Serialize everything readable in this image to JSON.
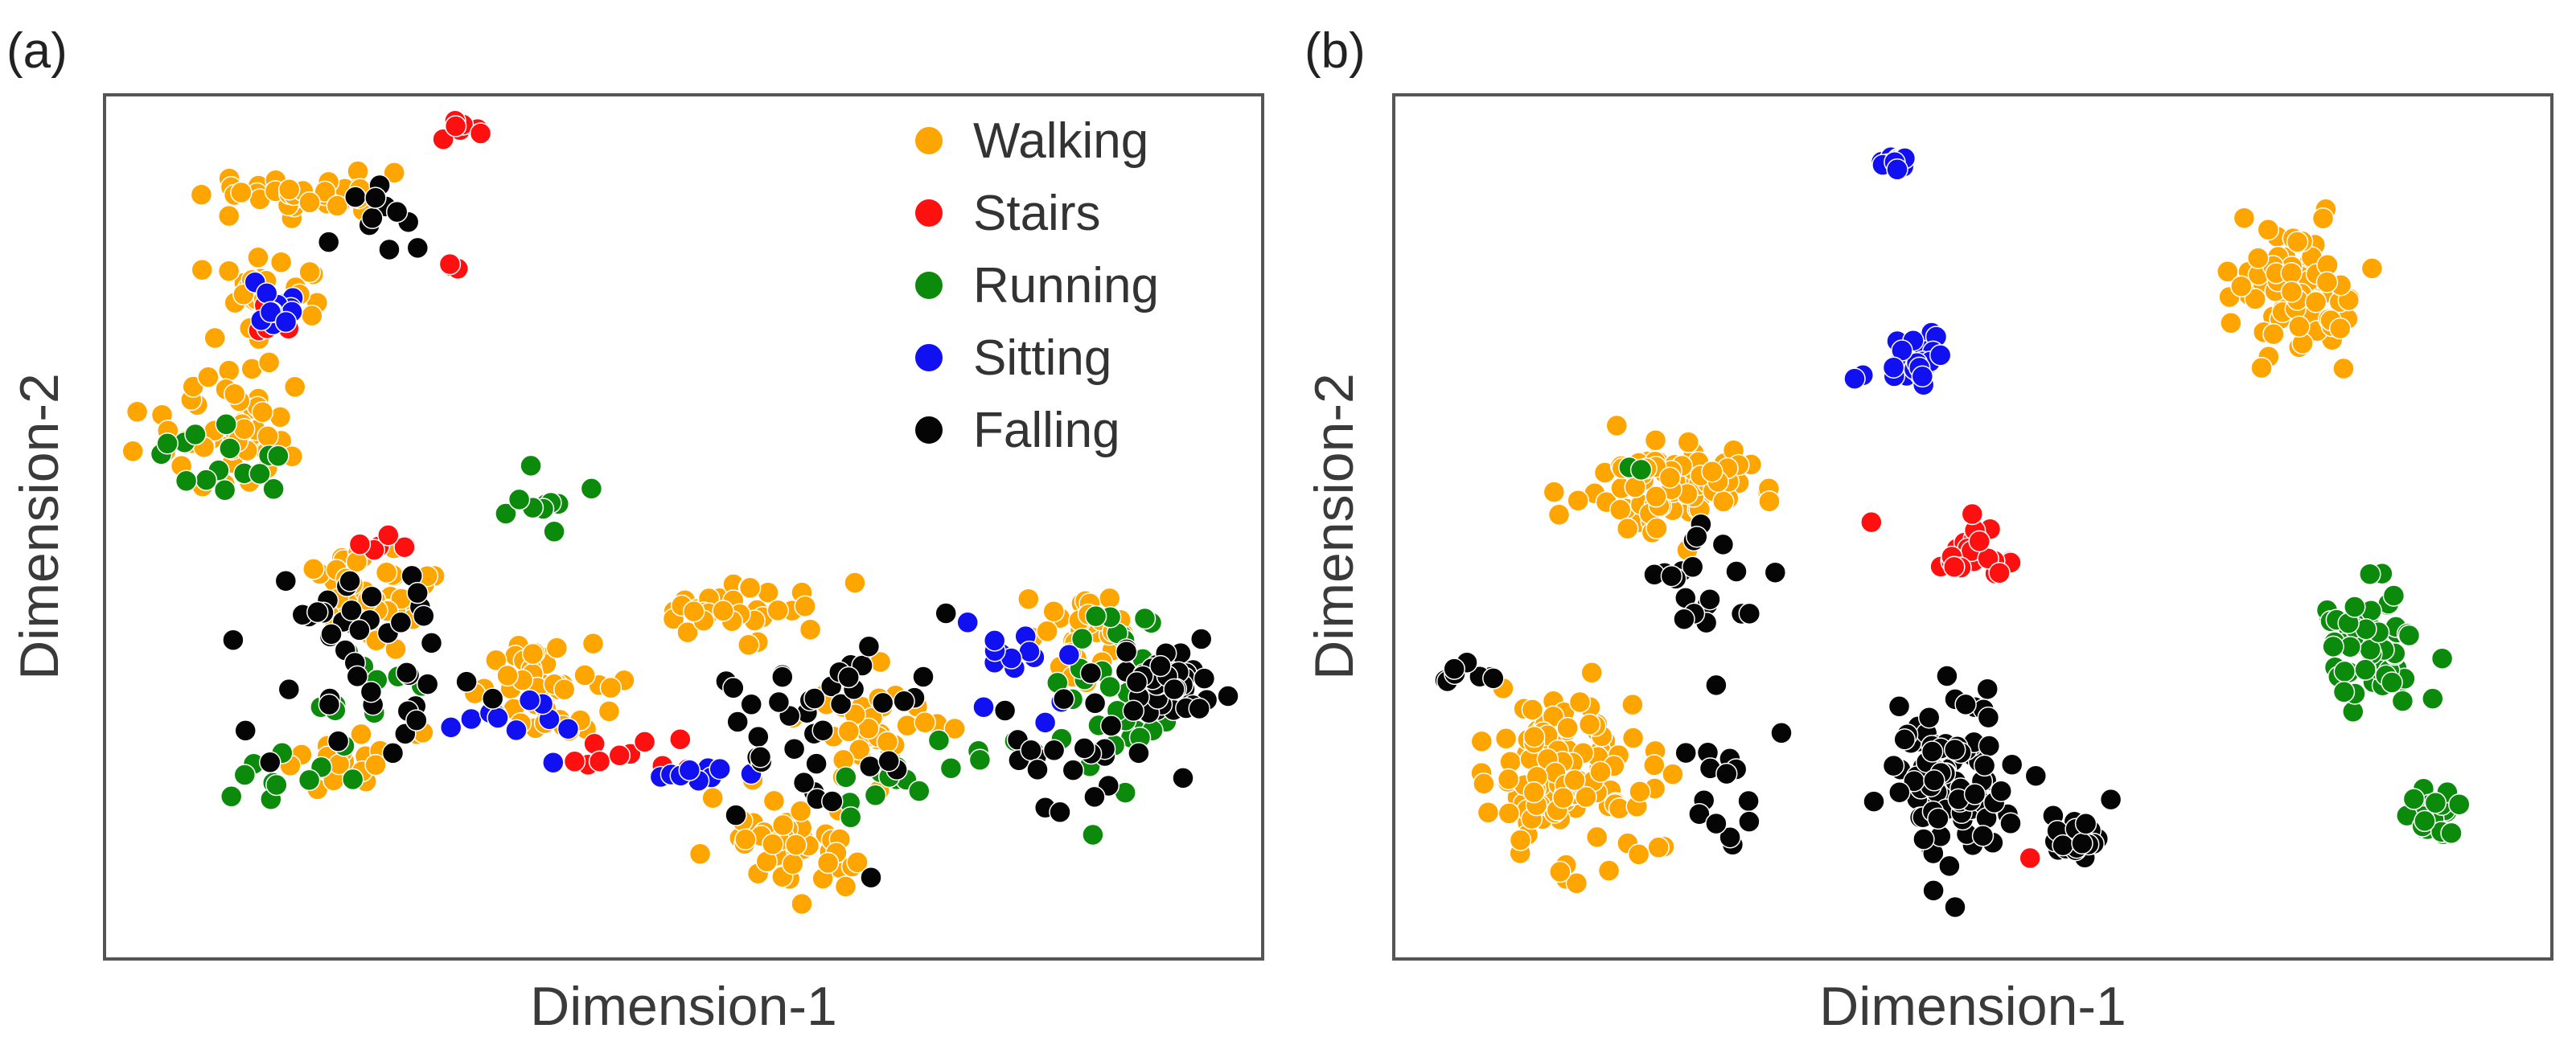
{
  "chart_data": [
    {
      "type": "scatter",
      "panel_label": "(a)",
      "xlabel": "Dimension-1",
      "ylabel": "Dimension-2",
      "xlim": [
        0,
        100
      ],
      "ylim": [
        0,
        100
      ],
      "grid": false,
      "legend": {
        "placement": "top-right",
        "entries": [
          "Walking",
          "Stairs",
          "Running",
          "Sitting",
          "Falling"
        ]
      },
      "series": [
        {
          "name": "Walking",
          "color": "#FFA500",
          "clusters": [
            {
              "cx": 18,
              "cy": 90,
              "rx": 7,
              "ry": 2.5,
              "n": 40
            },
            {
              "cx": 13,
              "cy": 78,
              "rx": 4,
              "ry": 4,
              "n": 28
            },
            {
              "cx": 10,
              "cy": 62,
              "rx": 6,
              "ry": 6,
              "n": 55
            },
            {
              "cx": 23,
              "cy": 42,
              "rx": 5,
              "ry": 6,
              "n": 45
            },
            {
              "cx": 21,
              "cy": 22,
              "rx": 5,
              "ry": 3,
              "n": 20
            },
            {
              "cx": 37,
              "cy": 30,
              "rx": 6,
              "ry": 6,
              "n": 45
            },
            {
              "cx": 55,
              "cy": 40,
              "rx": 6,
              "ry": 3.5,
              "n": 35
            },
            {
              "cx": 60,
              "cy": 12,
              "rx": 7,
              "ry": 5,
              "n": 45
            },
            {
              "cx": 67,
              "cy": 25,
              "rx": 6,
              "ry": 6,
              "n": 35
            },
            {
              "cx": 85,
              "cy": 38,
              "rx": 4,
              "ry": 7,
              "n": 35
            }
          ]
        },
        {
          "name": "Stairs",
          "color": "#FF1010",
          "clusters": [
            {
              "cx": 31,
              "cy": 98,
              "rx": 3,
              "ry": 1.5,
              "n": 8
            },
            {
              "cx": 30,
              "cy": 82,
              "rx": 1.5,
              "ry": 1.5,
              "n": 3
            },
            {
              "cx": 14,
              "cy": 75,
              "rx": 3,
              "ry": 3,
              "n": 5
            },
            {
              "cx": 23,
              "cy": 48,
              "rx": 3,
              "ry": 1.5,
              "n": 6
            },
            {
              "cx": 47,
              "cy": 22,
              "rx": 7,
              "ry": 2,
              "n": 10
            }
          ]
        },
        {
          "name": "Running",
          "color": "#0C8A0C",
          "clusters": [
            {
              "cx": 10,
              "cy": 58,
              "rx": 7,
              "ry": 6,
              "n": 15
            },
            {
              "cx": 38,
              "cy": 53,
              "rx": 4,
              "ry": 4,
              "n": 10
            },
            {
              "cx": 22,
              "cy": 30,
              "rx": 4,
              "ry": 4,
              "n": 10
            },
            {
              "cx": 14,
              "cy": 20,
              "rx": 4,
              "ry": 3,
              "n": 10
            },
            {
              "cx": 89,
              "cy": 30,
              "rx": 6,
              "ry": 10,
              "n": 40
            },
            {
              "cx": 70,
              "cy": 20,
              "rx": 8,
              "ry": 5,
              "n": 15
            }
          ]
        },
        {
          "name": "Sitting",
          "color": "#1010F0",
          "clusters": [
            {
              "cx": 14,
              "cy": 77,
              "rx": 3,
              "ry": 3,
              "n": 15
            },
            {
              "cx": 35,
              "cy": 28,
              "rx": 6,
              "ry": 3,
              "n": 10
            },
            {
              "cx": 50,
              "cy": 20,
              "rx": 7,
              "ry": 1.5,
              "n": 10
            },
            {
              "cx": 79,
              "cy": 35,
              "rx": 4,
              "ry": 7,
              "n": 15
            }
          ]
        },
        {
          "name": "Falling",
          "color": "#050505",
          "clusters": [
            {
              "cx": 22,
              "cy": 88,
              "rx": 6,
              "ry": 4,
              "n": 12
            },
            {
              "cx": 22,
              "cy": 35,
              "rx": 8,
              "ry": 12,
              "n": 45
            },
            {
              "cx": 62,
              "cy": 25,
              "rx": 8,
              "ry": 10,
              "n": 40
            },
            {
              "cx": 93,
              "cy": 32,
              "rx": 4,
              "ry": 5,
              "n": 40
            },
            {
              "cx": 85,
              "cy": 20,
              "rx": 8,
              "ry": 8,
              "n": 25
            }
          ]
        }
      ]
    },
    {
      "type": "scatter",
      "panel_label": "(b)",
      "xlabel": "Dimension-1",
      "ylabel": "Dimension-2",
      "xlim": [
        0,
        100
      ],
      "ylim": [
        0,
        100
      ],
      "grid": false,
      "series": [
        {
          "name": "Walking",
          "color": "#FFA500",
          "clusters": [
            {
              "cx": 78,
              "cy": 78,
              "rx": 5,
              "ry": 7,
              "n": 75
            },
            {
              "cx": 24,
              "cy": 55,
              "rx": 7,
              "ry": 5,
              "n": 80
            },
            {
              "cx": 14,
              "cy": 20,
              "rx": 7,
              "ry": 11,
              "n": 120
            }
          ]
        },
        {
          "name": "Stairs",
          "color": "#FF1010",
          "clusters": [
            {
              "cx": 50,
              "cy": 47,
              "rx": 3,
              "ry": 5,
              "n": 25
            },
            {
              "cx": 42,
              "cy": 50,
              "rx": 0.8,
              "ry": 0.8,
              "n": 1
            },
            {
              "cx": 55,
              "cy": 10,
              "rx": 0.8,
              "ry": 0.8,
              "n": 1
            }
          ]
        },
        {
          "name": "Running",
          "color": "#0C8A0C",
          "clusters": [
            {
              "cx": 85,
              "cy": 35,
              "rx": 4,
              "ry": 6,
              "n": 65
            },
            {
              "cx": 91,
              "cy": 15,
              "rx": 2,
              "ry": 3,
              "n": 25
            },
            {
              "cx": 20,
              "cy": 57,
              "rx": 1,
              "ry": 1,
              "n": 2
            }
          ]
        },
        {
          "name": "Sitting",
          "color": "#1010F0",
          "clusters": [
            {
              "cx": 43,
              "cy": 94,
              "rx": 1,
              "ry": 1,
              "n": 14
            },
            {
              "cx": 45,
              "cy": 70,
              "rx": 2,
              "ry": 3,
              "n": 25
            },
            {
              "cx": 39.5,
              "cy": 68,
              "rx": 0.8,
              "ry": 1,
              "n": 2
            }
          ]
        },
        {
          "name": "Falling",
          "color": "#050505",
          "clusters": [
            {
              "cx": 48,
              "cy": 20,
              "rx": 5,
              "ry": 9,
              "n": 110
            },
            {
              "cx": 59,
              "cy": 13,
              "rx": 2.5,
              "ry": 3,
              "n": 25
            },
            {
              "cx": 26,
              "cy": 43,
              "rx": 5,
              "ry": 7,
              "n": 20
            },
            {
              "cx": 6,
              "cy": 32,
              "rx": 3,
              "ry": 2,
              "n": 8
            },
            {
              "cx": 29,
              "cy": 20,
              "rx": 4,
              "ry": 8,
              "n": 15
            }
          ]
        }
      ]
    }
  ]
}
